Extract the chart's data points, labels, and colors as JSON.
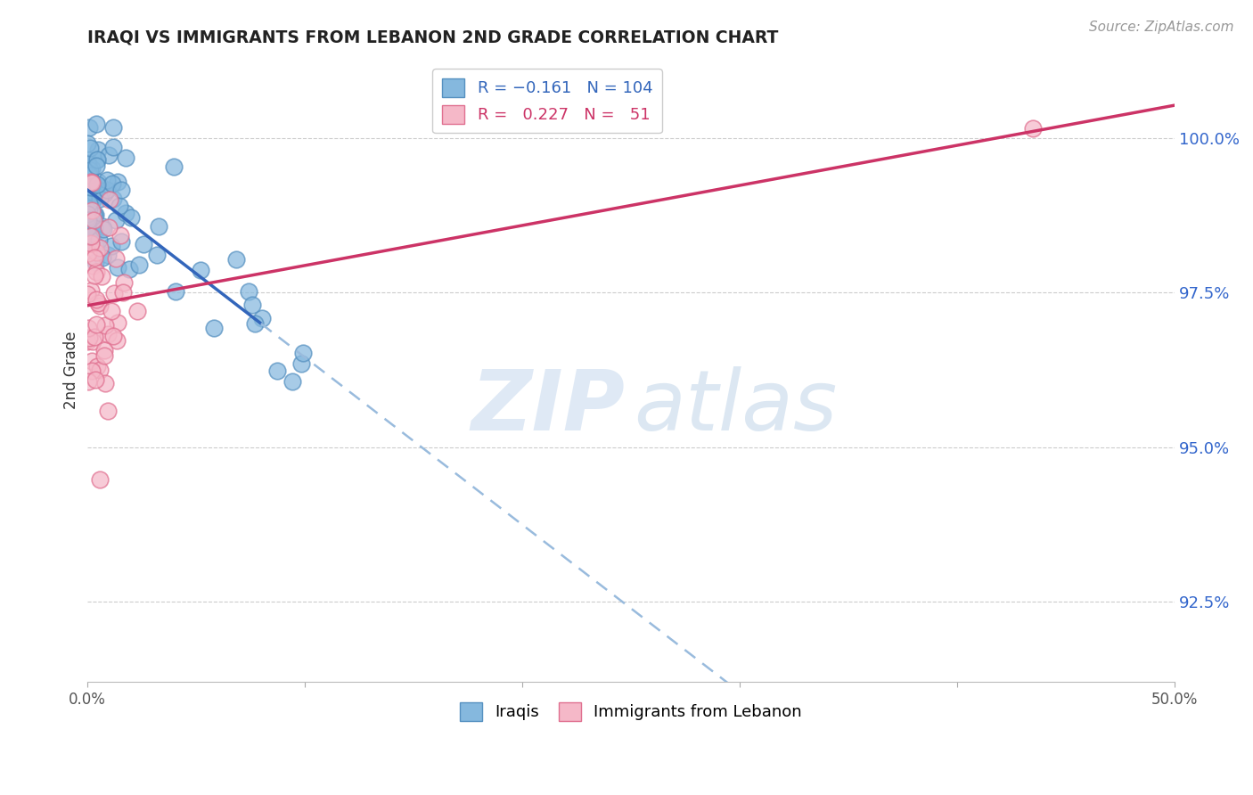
{
  "title": "IRAQI VS IMMIGRANTS FROM LEBANON 2ND GRADE CORRELATION CHART",
  "source": "Source: ZipAtlas.com",
  "ylabel": "2nd Grade",
  "y_ticks": [
    92.5,
    95.0,
    97.5,
    100.0
  ],
  "y_tick_labels": [
    "92.5%",
    "95.0%",
    "97.5%",
    "100.0%"
  ],
  "xlim": [
    0.0,
    50.0
  ],
  "ylim": [
    91.2,
    101.3
  ],
  "blue_R": -0.161,
  "blue_N": 104,
  "pink_R": 0.227,
  "pink_N": 51,
  "blue_color": "#85b8de",
  "blue_edge_color": "#5590c0",
  "pink_color": "#f5b8c8",
  "pink_edge_color": "#e07090",
  "blue_line_color": "#3366bb",
  "pink_line_color": "#cc3366",
  "blue_dash_color": "#99bbdd",
  "background_color": "#ffffff",
  "grid_color": "#cccccc",
  "title_color": "#222222",
  "axis_label_color": "#333333",
  "tick_label_color": "#3366cc",
  "source_color": "#999999",
  "seed": 42,
  "blue_solid_x_end": 8.0,
  "blue_line_intercept": 99.15,
  "blue_line_slope": -0.28,
  "pink_line_intercept": 97.35,
  "pink_line_slope": 0.065,
  "pink_outlier_x": 43.5,
  "pink_outlier_y": 100.15
}
